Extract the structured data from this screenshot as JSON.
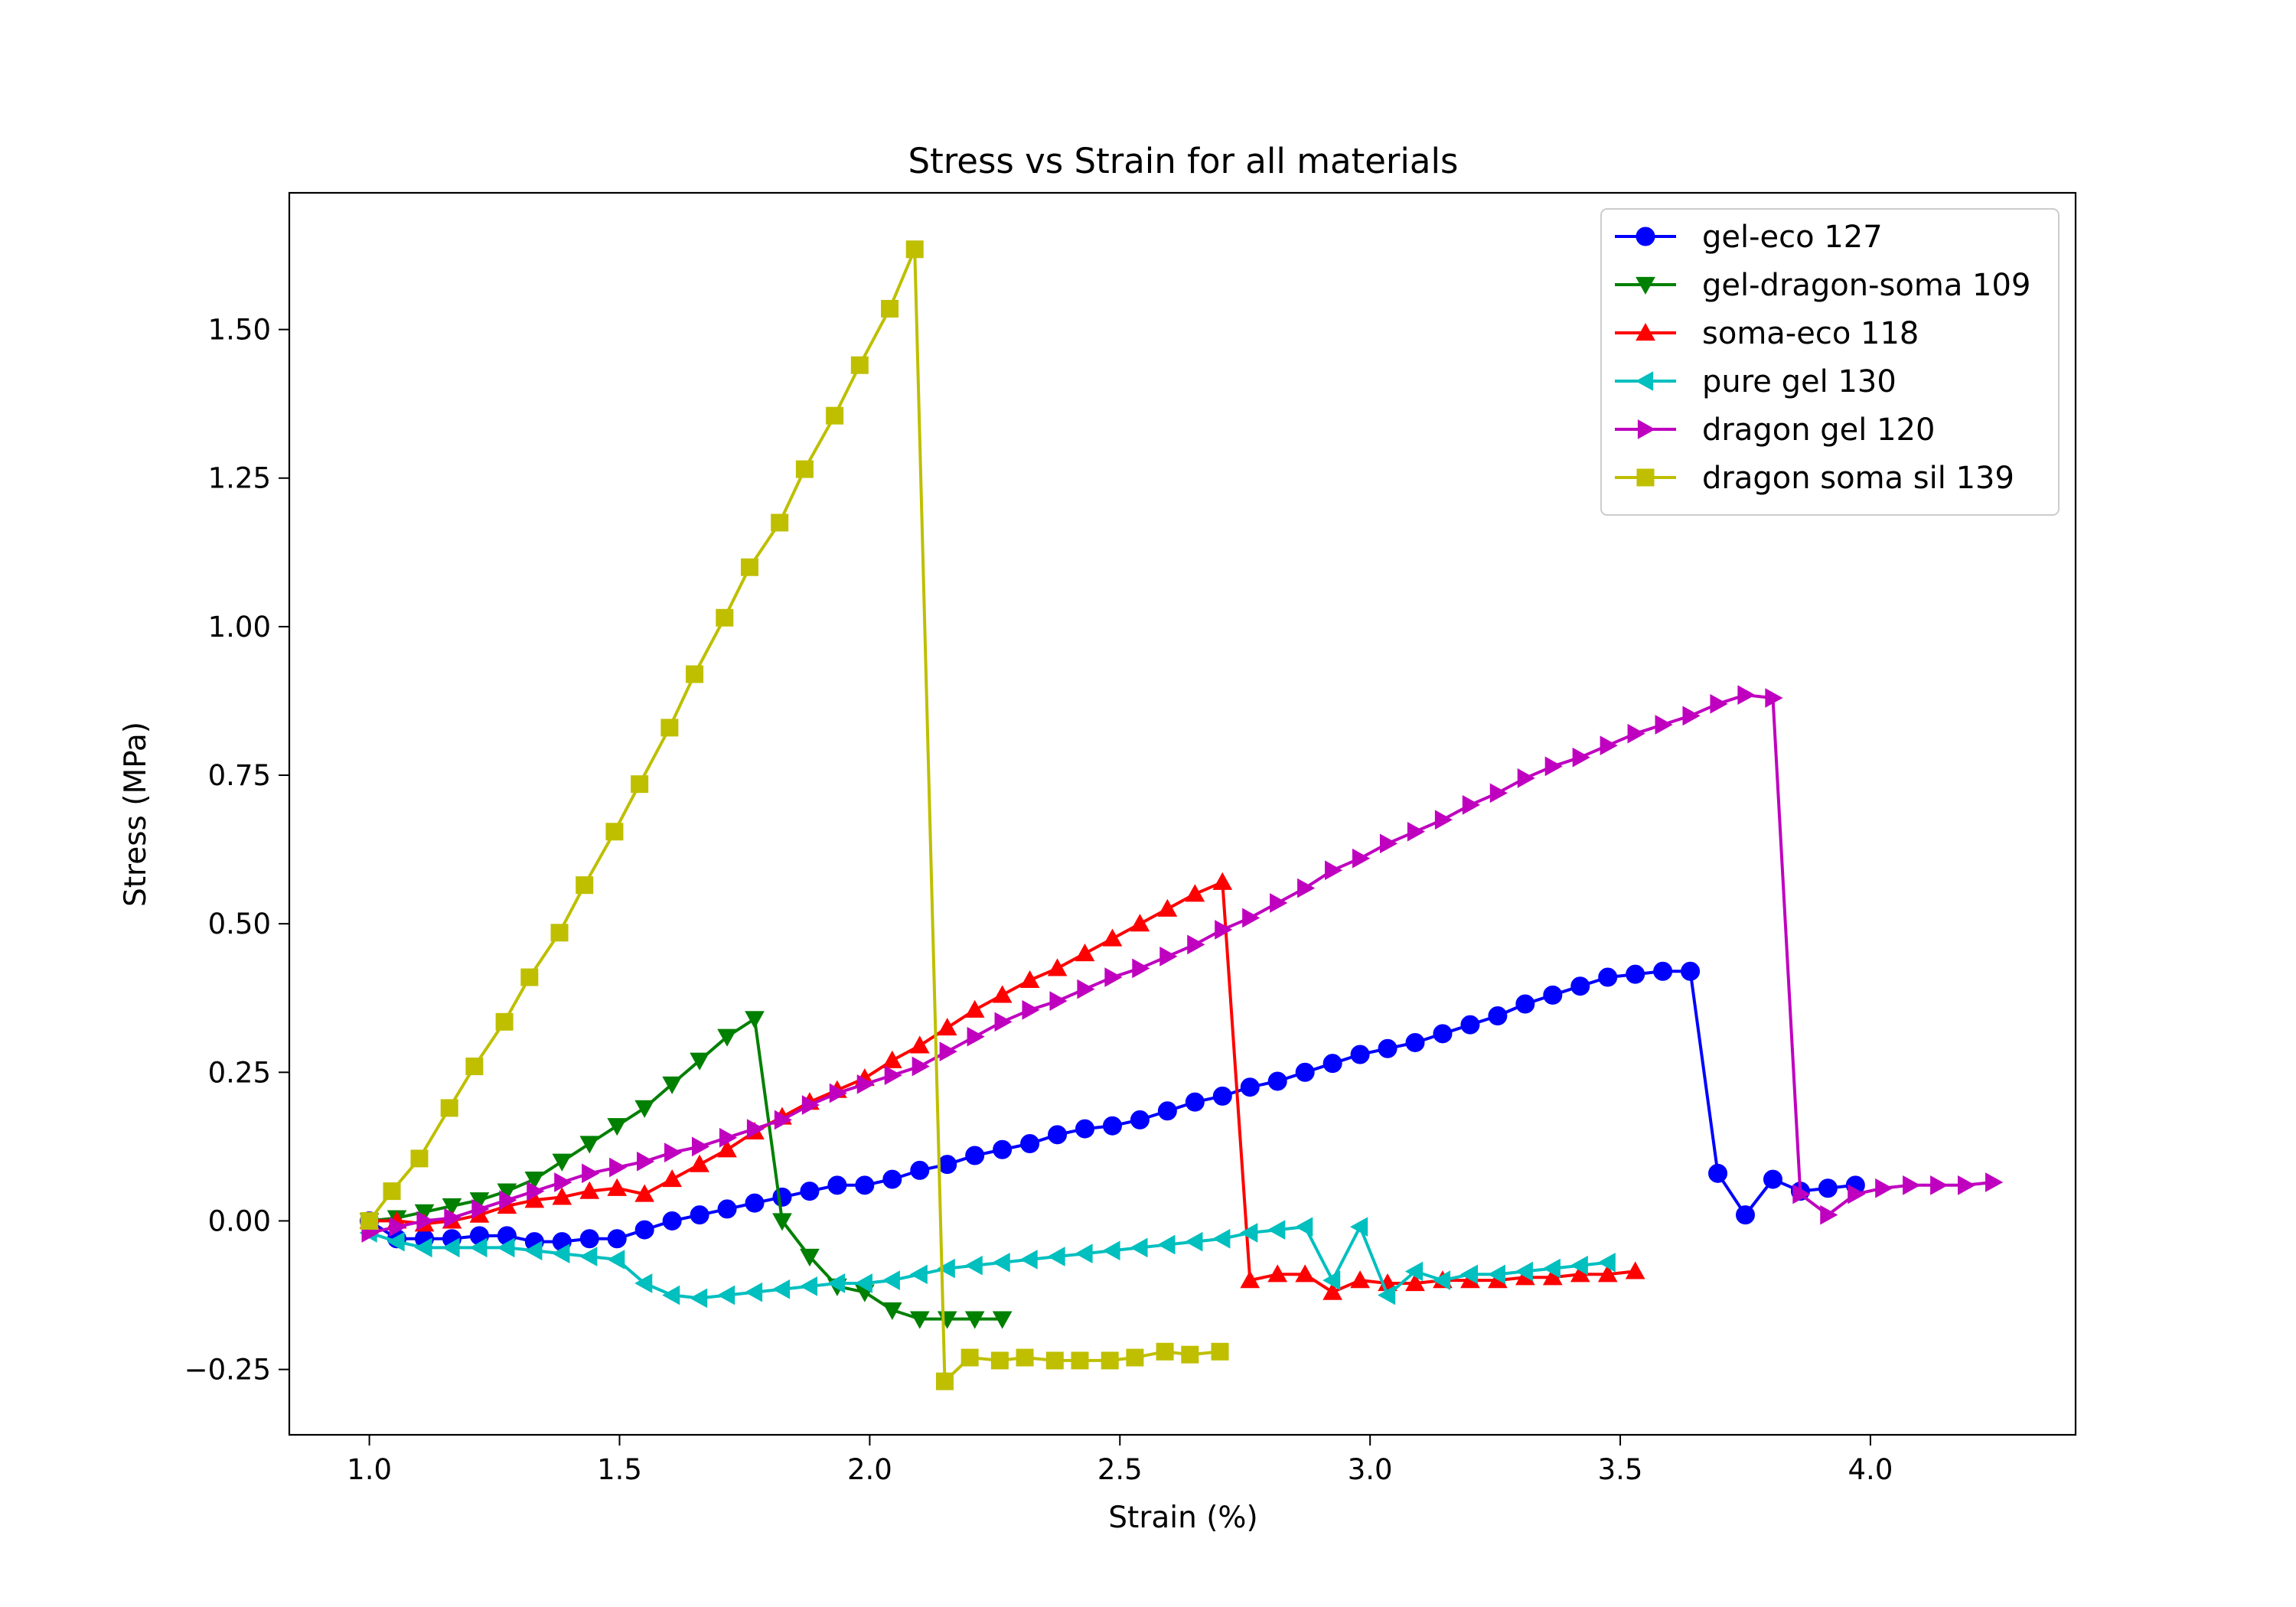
{
  "chart_data": {
    "type": "line",
    "title": "Stress vs Strain for all materials",
    "xlabel": "Strain (%)",
    "ylabel": "Stress (MPa)",
    "xlim": [
      0.84,
      4.41
    ],
    "ylim": [
      -0.36,
      1.73
    ],
    "x_ticks": [
      {
        "value": 1.0,
        "label": "1.0"
      },
      {
        "value": 1.5,
        "label": "1.5"
      },
      {
        "value": 2.0,
        "label": "2.0"
      },
      {
        "value": 2.5,
        "label": "2.5"
      },
      {
        "value": 3.0,
        "label": "3.0"
      },
      {
        "value": 3.5,
        "label": "3.5"
      },
      {
        "value": 4.0,
        "label": "4.0"
      }
    ],
    "y_ticks": [
      {
        "value": -0.25,
        "label": "−0.25"
      },
      {
        "value": 0.0,
        "label": "0.00"
      },
      {
        "value": 0.25,
        "label": "0.25"
      },
      {
        "value": 0.5,
        "label": "0.50"
      },
      {
        "value": 0.75,
        "label": "0.75"
      },
      {
        "value": 1.0,
        "label": "1.00"
      },
      {
        "value": 1.25,
        "label": "1.25"
      },
      {
        "value": 1.5,
        "label": "1.50"
      }
    ],
    "grid": false,
    "legend_position": "top-right",
    "series": [
      {
        "name": "gel-eco 127",
        "color": "#0000ff",
        "marker": "circle",
        "x": [
          1.0,
          1.055,
          1.11,
          1.165,
          1.22,
          1.275,
          1.33,
          1.385,
          1.44,
          1.495,
          1.55,
          1.605,
          1.66,
          1.715,
          1.77,
          1.825,
          1.88,
          1.935,
          1.99,
          2.045,
          2.1,
          2.155,
          2.21,
          2.265,
          2.32,
          2.375,
          2.43,
          2.485,
          2.54,
          2.595,
          2.65,
          2.705,
          2.76,
          2.815,
          2.87,
          2.925,
          2.98,
          3.035,
          3.09,
          3.145,
          3.2,
          3.255,
          3.31,
          3.365,
          3.42,
          3.475,
          3.53,
          3.585,
          3.64,
          3.695,
          3.75,
          3.805,
          3.86,
          3.915,
          3.97
        ],
        "y": [
          0.0,
          -0.03,
          -0.03,
          -0.03,
          -0.025,
          -0.025,
          -0.035,
          -0.035,
          -0.03,
          -0.03,
          -0.015,
          0.0,
          0.01,
          0.02,
          0.03,
          0.04,
          0.05,
          0.06,
          0.06,
          0.07,
          0.085,
          0.095,
          0.11,
          0.12,
          0.13,
          0.145,
          0.155,
          0.16,
          0.17,
          0.185,
          0.2,
          0.21,
          0.225,
          0.235,
          0.25,
          0.265,
          0.28,
          0.29,
          0.3,
          0.315,
          0.33,
          0.345,
          0.365,
          0.38,
          0.395,
          0.41,
          0.415,
          0.42,
          0.42,
          0.08,
          0.01,
          0.07,
          0.05,
          0.055,
          0.06
        ]
      },
      {
        "name": "gel-dragon-soma 109",
        "color": "#008000",
        "marker": "triangle-down",
        "x": [
          1.0,
          1.055,
          1.11,
          1.165,
          1.22,
          1.275,
          1.33,
          1.385,
          1.44,
          1.495,
          1.55,
          1.605,
          1.66,
          1.715,
          1.77,
          1.825,
          1.88,
          1.935,
          1.99,
          2.045,
          2.1,
          2.155,
          2.21,
          2.265
        ],
        "y": [
          0.0,
          0.005,
          0.015,
          0.025,
          0.035,
          0.05,
          0.07,
          0.1,
          0.13,
          0.16,
          0.19,
          0.23,
          0.27,
          0.31,
          0.34,
          0.0,
          -0.06,
          -0.11,
          -0.12,
          -0.15,
          -0.165,
          -0.165,
          -0.165,
          -0.165
        ]
      },
      {
        "name": "soma-eco 118",
        "color": "#ff0000",
        "marker": "triangle-up",
        "x": [
          1.0,
          1.055,
          1.11,
          1.165,
          1.22,
          1.275,
          1.33,
          1.385,
          1.44,
          1.495,
          1.55,
          1.605,
          1.66,
          1.715,
          1.77,
          1.825,
          1.88,
          1.935,
          1.99,
          2.045,
          2.1,
          2.155,
          2.21,
          2.265,
          2.32,
          2.375,
          2.43,
          2.485,
          2.54,
          2.595,
          2.65,
          2.705,
          2.76,
          2.815,
          2.87,
          2.925,
          2.98,
          3.035,
          3.09,
          3.145,
          3.2,
          3.255,
          3.31,
          3.365,
          3.42,
          3.475,
          3.53
        ],
        "y": [
          0.0,
          0.0,
          -0.005,
          0.0,
          0.01,
          0.025,
          0.035,
          0.04,
          0.05,
          0.055,
          0.045,
          0.07,
          0.095,
          0.12,
          0.15,
          0.175,
          0.2,
          0.22,
          0.24,
          0.27,
          0.295,
          0.325,
          0.355,
          0.38,
          0.405,
          0.425,
          0.45,
          0.475,
          0.5,
          0.525,
          0.55,
          0.57,
          -0.1,
          -0.09,
          -0.09,
          -0.12,
          -0.1,
          -0.105,
          -0.105,
          -0.1,
          -0.1,
          -0.1,
          -0.095,
          -0.095,
          -0.09,
          -0.09,
          -0.085
        ]
      },
      {
        "name": "pure gel 130",
        "color": "#00bfbf",
        "marker": "triangle-left",
        "x": [
          1.0,
          1.055,
          1.11,
          1.165,
          1.22,
          1.275,
          1.33,
          1.385,
          1.44,
          1.495,
          1.55,
          1.605,
          1.66,
          1.715,
          1.77,
          1.825,
          1.88,
          1.935,
          1.99,
          2.045,
          2.1,
          2.155,
          2.21,
          2.265,
          2.32,
          2.375,
          2.43,
          2.485,
          2.54,
          2.595,
          2.65,
          2.705,
          2.76,
          2.815,
          2.87,
          2.925,
          2.98,
          3.035,
          3.09,
          3.145,
          3.2,
          3.255,
          3.31,
          3.365,
          3.42,
          3.475
        ],
        "y": [
          -0.02,
          -0.035,
          -0.045,
          -0.045,
          -0.045,
          -0.045,
          -0.05,
          -0.055,
          -0.06,
          -0.065,
          -0.105,
          -0.125,
          -0.13,
          -0.125,
          -0.12,
          -0.115,
          -0.11,
          -0.105,
          -0.105,
          -0.1,
          -0.09,
          -0.08,
          -0.075,
          -0.07,
          -0.065,
          -0.06,
          -0.055,
          -0.05,
          -0.045,
          -0.04,
          -0.035,
          -0.03,
          -0.02,
          -0.015,
          -0.01,
          -0.1,
          -0.01,
          -0.125,
          -0.085,
          -0.1,
          -0.09,
          -0.09,
          -0.085,
          -0.08,
          -0.075,
          -0.07
        ]
      },
      {
        "name": "dragon gel 120",
        "color": "#bf00bf",
        "marker": "triangle-right",
        "x": [
          1.0,
          1.055,
          1.11,
          1.165,
          1.22,
          1.275,
          1.33,
          1.385,
          1.44,
          1.495,
          1.55,
          1.605,
          1.66,
          1.715,
          1.77,
          1.825,
          1.88,
          1.935,
          1.99,
          2.045,
          2.1,
          2.155,
          2.21,
          2.265,
          2.32,
          2.375,
          2.43,
          2.485,
          2.54,
          2.595,
          2.65,
          2.705,
          2.76,
          2.815,
          2.87,
          2.925,
          2.98,
          3.035,
          3.09,
          3.145,
          3.2,
          3.255,
          3.31,
          3.365,
          3.42,
          3.475,
          3.53,
          3.585,
          3.64,
          3.695,
          3.75,
          3.805,
          3.86,
          3.915,
          3.97,
          4.025,
          4.08,
          4.135,
          4.19,
          4.245
        ],
        "y": [
          -0.02,
          -0.01,
          0.0,
          0.005,
          0.02,
          0.035,
          0.05,
          0.065,
          0.08,
          0.09,
          0.1,
          0.115,
          0.125,
          0.14,
          0.155,
          0.17,
          0.195,
          0.215,
          0.23,
          0.245,
          0.26,
          0.285,
          0.31,
          0.335,
          0.355,
          0.37,
          0.39,
          0.41,
          0.425,
          0.445,
          0.465,
          0.49,
          0.51,
          0.535,
          0.56,
          0.59,
          0.61,
          0.635,
          0.655,
          0.675,
          0.7,
          0.72,
          0.745,
          0.765,
          0.78,
          0.8,
          0.82,
          0.835,
          0.85,
          0.87,
          0.885,
          0.88,
          0.045,
          0.01,
          0.045,
          0.055,
          0.06,
          0.06,
          0.06,
          0.065
        ]
      },
      {
        "name": "dragon soma sil 139",
        "color": "#bfbf00",
        "marker": "square",
        "x": [
          1.0,
          1.045,
          1.1,
          1.16,
          1.21,
          1.27,
          1.32,
          1.38,
          1.43,
          1.49,
          1.54,
          1.6,
          1.65,
          1.71,
          1.76,
          1.82,
          1.87,
          1.93,
          1.98,
          2.04,
          2.09,
          2.15,
          2.2,
          2.26,
          2.31,
          2.37,
          2.42,
          2.48,
          2.53,
          2.59,
          2.64,
          2.7
        ],
        "y": [
          0.0,
          0.05,
          0.105,
          0.19,
          0.26,
          0.335,
          0.41,
          0.485,
          0.565,
          0.655,
          0.735,
          0.83,
          0.92,
          1.015,
          1.1,
          1.175,
          1.265,
          1.355,
          1.44,
          1.535,
          1.635,
          -0.27,
          -0.23,
          -0.235,
          -0.23,
          -0.235,
          -0.235,
          -0.235,
          -0.23,
          -0.22,
          -0.225,
          -0.22
        ]
      }
    ]
  }
}
